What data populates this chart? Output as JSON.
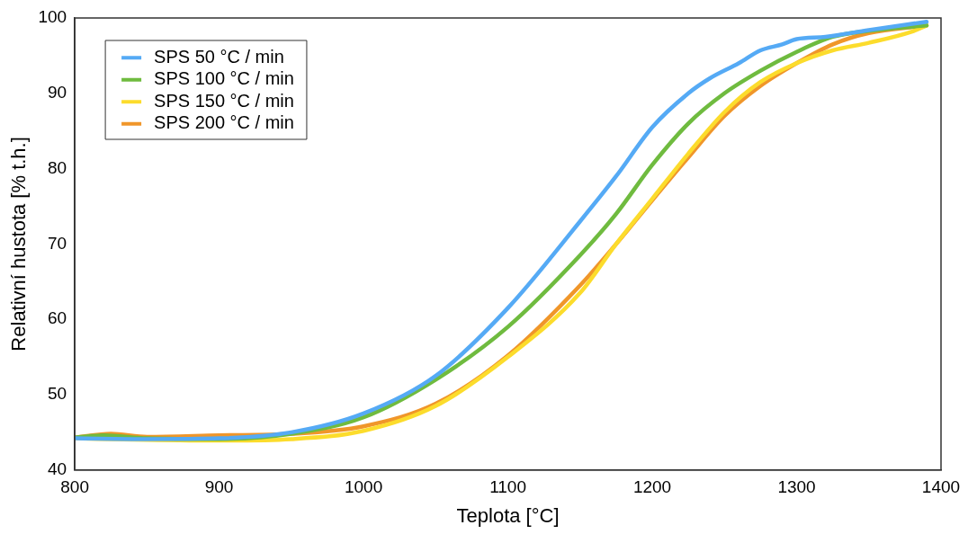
{
  "chart_data": {
    "type": "line",
    "xlabel": "Teplota [°C]",
    "ylabel": "Relativní hustota [% t.h.]",
    "xlim": [
      800,
      1400
    ],
    "xticks": [
      800,
      900,
      1000,
      1100,
      1200,
      1300,
      1400
    ],
    "ylim": [
      40,
      100
    ],
    "yticks": [
      40,
      50,
      60,
      70,
      80,
      90,
      100
    ],
    "grid": false,
    "legend": "top left",
    "marker": "none",
    "line_style": "solid",
    "series": [
      {
        "name": "SPS 50 °C / min",
        "color": "#55aaf5",
        "x": [
          800,
          850,
          900,
          950,
          1000,
          1050,
          1100,
          1150,
          1175,
          1200,
          1225,
          1240,
          1260,
          1275,
          1290,
          1300,
          1320,
          1350,
          1390
        ],
        "values": [
          44.2,
          44.1,
          44.2,
          45,
          47.5,
          52.5,
          61.5,
          73,
          79,
          85.5,
          90,
          92,
          94,
          95.7,
          96.5,
          97.2,
          97.5,
          98.4,
          99.5
        ]
      },
      {
        "name": "SPS 100 °C / min",
        "color": "#6fbb3f",
        "x": [
          800,
          820,
          850,
          900,
          950,
          1000,
          1050,
          1100,
          1150,
          1175,
          1200,
          1225,
          1250,
          1275,
          1300,
          1325,
          1350,
          1390
        ],
        "values": [
          44.3,
          44.6,
          44.2,
          44.1,
          44.8,
          47,
          52,
          59,
          68.5,
          74,
          80.5,
          86,
          90,
          93,
          95.5,
          97.5,
          98.3,
          99
        ]
      },
      {
        "name": "SPS 150 °C / min",
        "color": "#fcdc2c",
        "x": [
          800,
          850,
          900,
          950,
          1000,
          1050,
          1100,
          1150,
          1175,
          1200,
          1225,
          1250,
          1275,
          1300,
          1325,
          1350,
          1380,
          1390
        ],
        "values": [
          44.2,
          44,
          43.9,
          44.1,
          45.2,
          48.5,
          55,
          63.5,
          70,
          76,
          82,
          87.5,
          91.5,
          94,
          95.7,
          96.7,
          98.2,
          99
        ]
      },
      {
        "name": "SPS 200 °C / min",
        "color": "#f0962a",
        "x": [
          800,
          825,
          850,
          900,
          950,
          1000,
          1050,
          1100,
          1150,
          1175,
          1200,
          1225,
          1250,
          1275,
          1300,
          1325,
          1350,
          1390
        ],
        "values": [
          44.3,
          44.8,
          44.4,
          44.6,
          44.8,
          45.8,
          48.8,
          55.2,
          64.5,
          70,
          75.8,
          81.5,
          87,
          91,
          94,
          96.5,
          98,
          99
        ]
      }
    ]
  }
}
